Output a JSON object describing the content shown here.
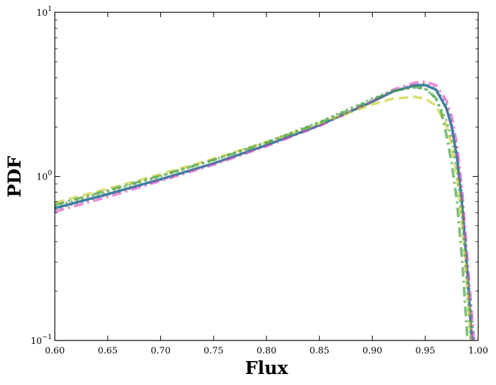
{
  "chart_data": {
    "type": "line",
    "title": "",
    "xlabel": "Flux",
    "ylabel": "PDF",
    "xlim": [
      0.6,
      1.0
    ],
    "ylim": [
      0.1,
      10
    ],
    "yscale": "log",
    "grid": false,
    "x_ticks": [
      "0.60",
      "0.65",
      "0.70",
      "0.75",
      "0.80",
      "0.85",
      "0.90",
      "0.95",
      "1.00"
    ],
    "y_ticks": [
      {
        "base": "10",
        "exp": "−1"
      },
      {
        "base": "10",
        "exp": "0"
      },
      {
        "base": "10",
        "exp": "1"
      }
    ],
    "series": [
      {
        "color": "#555555",
        "dash": "solid",
        "width": 3.5,
        "opacity": 1.0,
        "x": [
          0.6,
          0.65,
          0.7,
          0.75,
          0.8,
          0.85,
          0.9,
          0.92,
          0.94,
          0.95,
          0.96,
          0.97,
          0.975,
          0.98,
          0.985,
          0.99,
          0.994
        ],
        "y": [
          0.64,
          0.78,
          0.96,
          1.2,
          1.55,
          2.05,
          2.85,
          3.3,
          3.58,
          3.6,
          3.38,
          2.6,
          2.0,
          1.3,
          0.65,
          0.25,
          0.1
        ]
      },
      {
        "color": "#2b8cbe",
        "dash": "solid",
        "width": 2.5,
        "opacity": 0.9,
        "x": [
          0.6,
          0.65,
          0.7,
          0.75,
          0.8,
          0.85,
          0.9,
          0.92,
          0.94,
          0.95,
          0.96,
          0.97,
          0.975,
          0.98,
          0.985,
          0.99,
          0.994
        ],
        "y": [
          0.64,
          0.78,
          0.96,
          1.2,
          1.55,
          2.05,
          2.85,
          3.3,
          3.58,
          3.6,
          3.38,
          2.6,
          2.0,
          1.3,
          0.65,
          0.25,
          0.1
        ]
      },
      {
        "color": "#e040c0",
        "dash": "dashdot",
        "width": 4,
        "opacity": 0.6,
        "x": [
          0.6,
          0.65,
          0.7,
          0.75,
          0.8,
          0.85,
          0.9,
          0.92,
          0.94,
          0.95,
          0.96,
          0.97,
          0.975,
          0.98,
          0.985,
          0.99,
          0.996
        ],
        "y": [
          0.61,
          0.75,
          0.94,
          1.18,
          1.53,
          2.03,
          2.88,
          3.38,
          3.72,
          3.78,
          3.6,
          2.9,
          2.3,
          1.55,
          0.8,
          0.3,
          0.1
        ]
      },
      {
        "color": "#cfd040",
        "dash": "dashed",
        "width": 4,
        "opacity": 0.7,
        "x": [
          0.6,
          0.65,
          0.7,
          0.75,
          0.8,
          0.85,
          0.9,
          0.92,
          0.94,
          0.95,
          0.96,
          0.97,
          0.975,
          0.98,
          0.985,
          0.99,
          0.993
        ],
        "y": [
          0.69,
          0.84,
          1.03,
          1.28,
          1.62,
          2.1,
          2.75,
          2.98,
          3.05,
          2.98,
          2.7,
          2.05,
          1.55,
          1.0,
          0.5,
          0.2,
          0.1
        ]
      },
      {
        "color": "#3a9e3a",
        "dash": "dashdot",
        "width": 4,
        "opacity": 0.65,
        "x": [
          0.6,
          0.65,
          0.7,
          0.75,
          0.8,
          0.85,
          0.9,
          0.92,
          0.94,
          0.95,
          0.96,
          0.965,
          0.97,
          0.975,
          0.98,
          0.985,
          0.99
        ],
        "y": [
          0.67,
          0.82,
          1.01,
          1.26,
          1.6,
          2.12,
          2.92,
          3.32,
          3.5,
          3.45,
          3.0,
          2.5,
          1.8,
          1.2,
          0.7,
          0.3,
          0.1
        ]
      },
      {
        "color": "#56a556",
        "dash": "dotted",
        "width": 3.5,
        "opacity": 0.7,
        "x": [
          0.6,
          0.65,
          0.7,
          0.75,
          0.8,
          0.85,
          0.9,
          0.92,
          0.94,
          0.95,
          0.96,
          0.97,
          0.975,
          0.98,
          0.985,
          0.99,
          0.993
        ],
        "y": [
          0.66,
          0.81,
          1.0,
          1.26,
          1.62,
          2.15,
          2.98,
          3.35,
          3.48,
          3.4,
          3.0,
          2.2,
          1.7,
          1.1,
          0.55,
          0.2,
          0.1
        ]
      },
      {
        "color": "#4a7a9a",
        "dash": "dotted",
        "width": 3,
        "opacity": 0.7,
        "x": [
          0.6,
          0.65,
          0.7,
          0.75,
          0.8,
          0.85,
          0.9,
          0.92,
          0.94,
          0.95,
          0.96,
          0.97,
          0.975,
          0.98,
          0.985,
          0.99,
          0.996
        ],
        "y": [
          0.63,
          0.77,
          0.95,
          1.19,
          1.54,
          2.04,
          2.86,
          3.32,
          3.62,
          3.66,
          3.45,
          2.75,
          2.15,
          1.45,
          0.75,
          0.28,
          0.1
        ]
      }
    ]
  }
}
